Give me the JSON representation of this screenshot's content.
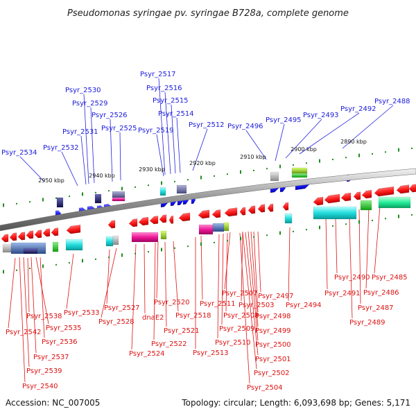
{
  "title": "Pseudomonas syringae pv. syringae B728a, complete genome",
  "accession": "Accession: NC_007005",
  "summary": "Topology: circular; Length: 6,093,698 bp; Genes: 5,171",
  "ticks": [
    "2950 kbp",
    "2940 kbp",
    "2930 kbp",
    "2920 kbp",
    "2910 kbp",
    "2900 kbp",
    "2890 kbp"
  ],
  "top_genes": [
    "Psyr_2534",
    "Psyr_2532",
    "Psyr_2531",
    "Psyr_2530",
    "Psyr_2529",
    "Psyr_2526",
    "Psyr_2525",
    "Psyr_2519",
    "Psyr_2517",
    "Psyr_2516",
    "Psyr_2515",
    "Psyr_2514",
    "Psyr_2512",
    "Psyr_2496",
    "Psyr_2495",
    "Psyr_2493",
    "Psyr_2492",
    "Psyr_2488"
  ],
  "bottom_genes": [
    "Psyr_2542",
    "Psyr_2538",
    "Psyr_2535",
    "Psyr_2536",
    "Psyr_2537",
    "Psyr_2539",
    "Psyr_2540",
    "Psyr_2533",
    "Psyr_2527",
    "Psyr_2528",
    "dnaE2",
    "Psyr_2524",
    "Psyr_2520",
    "Psyr_2518",
    "Psyr_2521",
    "Psyr_2522",
    "Psyr_2511",
    "Psyr_2513",
    "Psyr_2510",
    "Psyr_2509",
    "Psyr_2508",
    "Psyr_2507",
    "Psyr_2503",
    "Psyr_2497",
    "Psyr_2498",
    "Psyr_2499",
    "Psyr_2500",
    "Psyr_2501",
    "Psyr_2502",
    "Psyr_2504",
    "Psyr_2494",
    "Psyr_2491",
    "Psyr_2490",
    "Psyr_2489",
    "Psyr_2487",
    "Psyr_2486",
    "Psyr_2485"
  ],
  "colors": {
    "forward_gene": "#1a1aff",
    "reverse_gene": "#ee1111",
    "backbone": "#888888",
    "tick": "#1e8a1e",
    "blue_label": "#1a1adc",
    "red_label": "#dd1111"
  }
}
